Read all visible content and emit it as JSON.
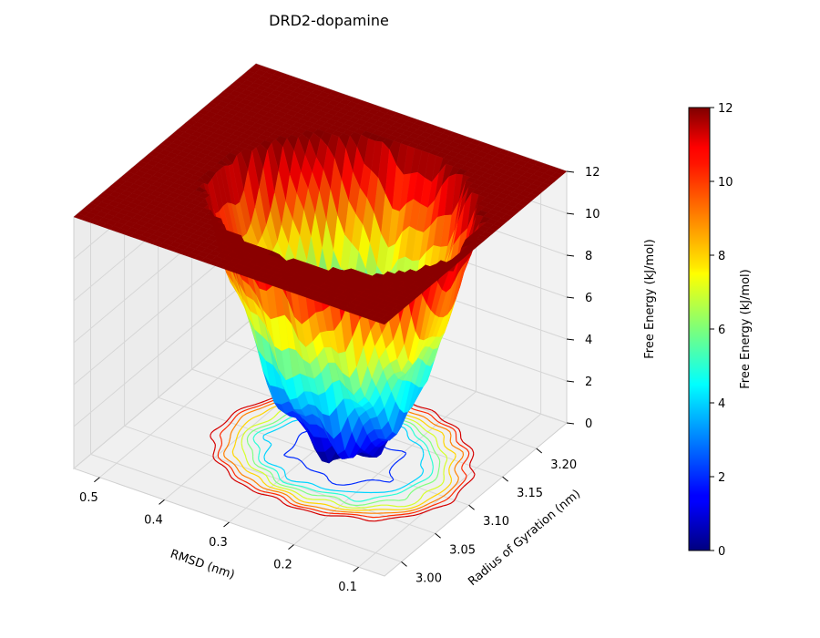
{
  "figure": {
    "title": "DRD2-dopamine"
  },
  "chart_data": {
    "type": "surface3d",
    "title": "DRD2-dopamine",
    "xlabel": "RMSD (nm)",
    "ylabel": "Radius of Gyration (nm)",
    "zlabel": "Free Energy (kJ/mol)",
    "xlim": [
      0.06,
      0.54
    ],
    "ylim": [
      2.975,
      3.245
    ],
    "zlim": [
      0,
      12
    ],
    "x_ticks": [
      "0.1",
      "0.2",
      "0.3",
      "0.4",
      "0.5"
    ],
    "y_ticks": [
      "3.00",
      "3.05",
      "3.10",
      "3.15",
      "3.20"
    ],
    "z_ticks": [
      "0",
      "2",
      "4",
      "6",
      "8",
      "10",
      "12"
    ],
    "minimum": {
      "x": 0.26,
      "y": 3.11,
      "z": 0
    },
    "cap_value": 12,
    "colormap": "jet",
    "colorbar": {
      "label": "Free Energy (kJ/mol)",
      "ticks": [
        "0",
        "2",
        "4",
        "6",
        "8",
        "10",
        "12"
      ],
      "range": [
        0,
        12
      ]
    },
    "contour_levels": [
      2,
      4,
      5,
      6,
      7,
      8,
      9,
      10,
      11
    ]
  }
}
